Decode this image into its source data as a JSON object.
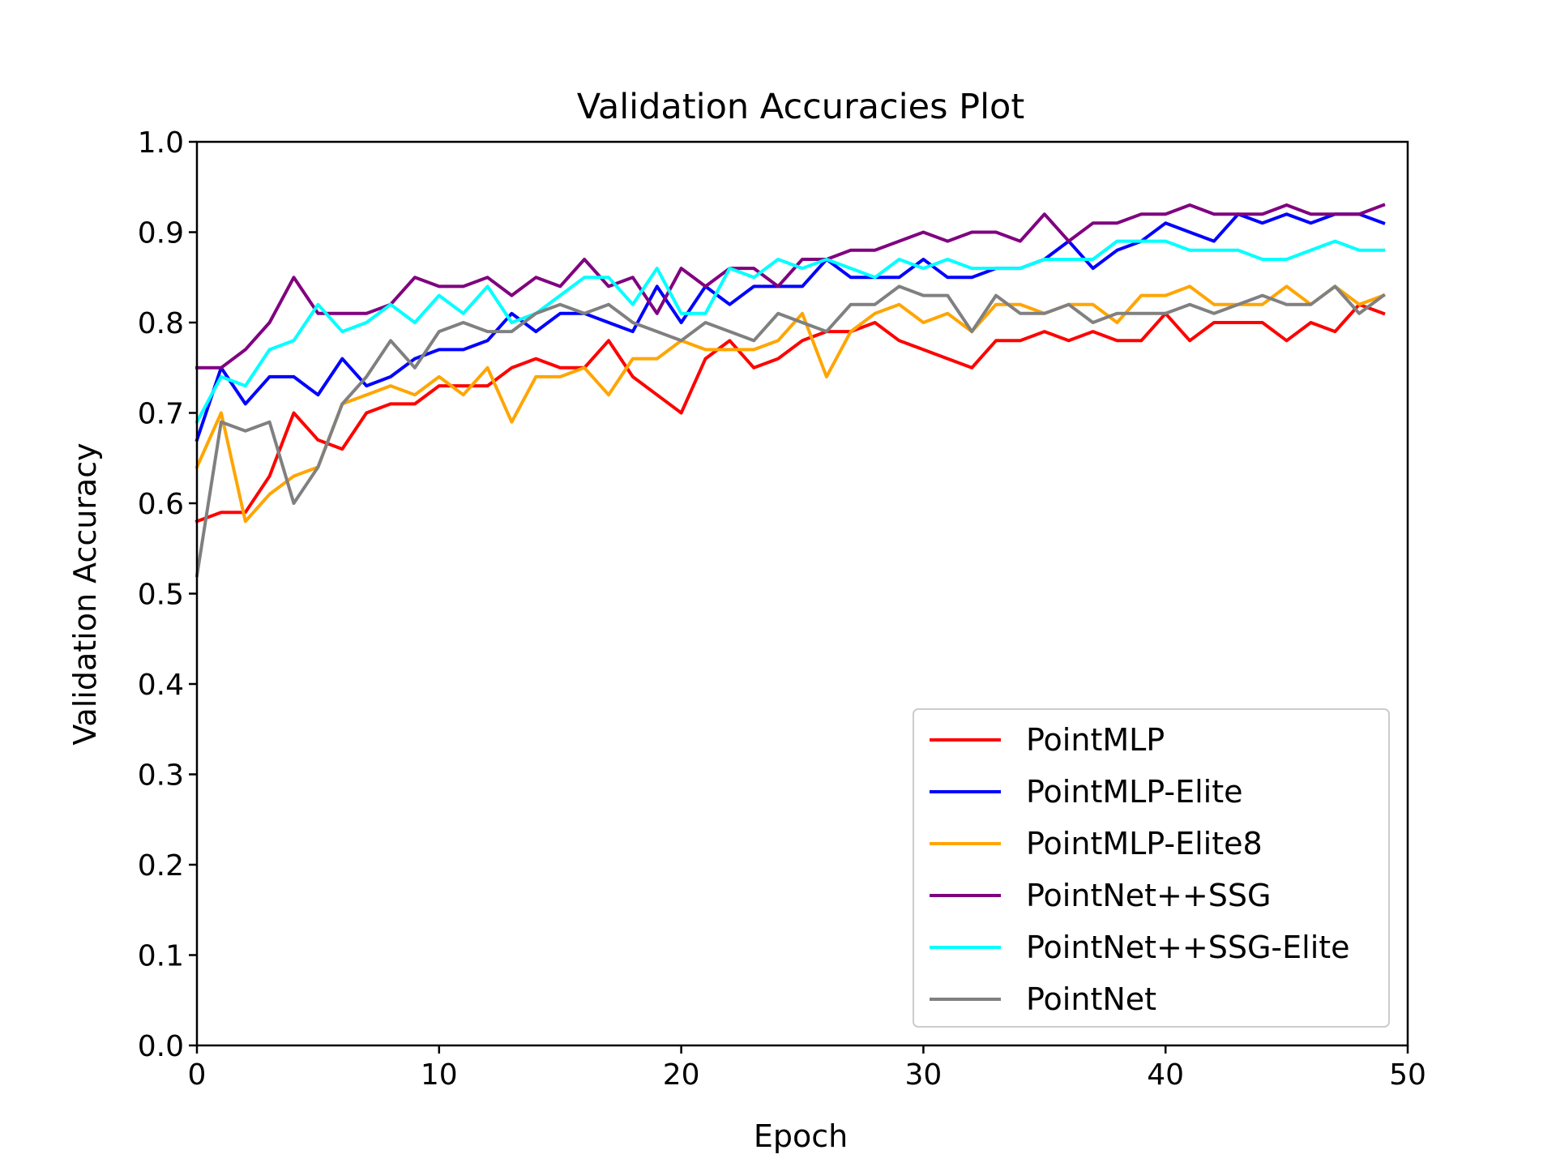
{
  "chart_data": {
    "type": "line",
    "title": "Validation Accuracies Plot",
    "xlabel": "Epoch",
    "ylabel": "Validation Accuracy",
    "xlim": [
      0,
      50
    ],
    "ylim": [
      0.0,
      1.0
    ],
    "xticks": [
      "0",
      "10",
      "20",
      "30",
      "40",
      "50"
    ],
    "yticks": [
      "0.0",
      "0.1",
      "0.2",
      "0.3",
      "0.4",
      "0.5",
      "0.6",
      "0.7",
      "0.8",
      "0.9",
      "1.0"
    ],
    "grid": false,
    "legend_position": "lower-right",
    "x": [
      0,
      1,
      2,
      3,
      4,
      5,
      6,
      7,
      8,
      9,
      10,
      11,
      12,
      13,
      14,
      15,
      16,
      17,
      18,
      19,
      20,
      21,
      22,
      23,
      24,
      25,
      26,
      27,
      28,
      29,
      30,
      31,
      32,
      33,
      34,
      35,
      36,
      37,
      38,
      39,
      40,
      41,
      42,
      43,
      44,
      45,
      46,
      47,
      48,
      49
    ],
    "series": [
      {
        "name": "PointMLP",
        "color": "#ff0000",
        "values": [
          0.58,
          0.59,
          0.59,
          0.63,
          0.7,
          0.67,
          0.66,
          0.7,
          0.71,
          0.71,
          0.73,
          0.73,
          0.73,
          0.75,
          0.76,
          0.75,
          0.75,
          0.78,
          0.74,
          0.72,
          0.7,
          0.76,
          0.78,
          0.75,
          0.76,
          0.78,
          0.79,
          0.79,
          0.8,
          0.78,
          0.77,
          0.76,
          0.75,
          0.78,
          0.78,
          0.79,
          0.78,
          0.79,
          0.78,
          0.78,
          0.81,
          0.78,
          0.8,
          0.8,
          0.8,
          0.78,
          0.8,
          0.79,
          0.82,
          0.81
        ]
      },
      {
        "name": "PointMLP-Elite",
        "color": "#0000ff",
        "values": [
          0.67,
          0.75,
          0.71,
          0.74,
          0.74,
          0.72,
          0.76,
          0.73,
          0.74,
          0.76,
          0.77,
          0.77,
          0.78,
          0.81,
          0.79,
          0.81,
          0.81,
          0.8,
          0.79,
          0.84,
          0.8,
          0.84,
          0.82,
          0.84,
          0.84,
          0.84,
          0.87,
          0.85,
          0.85,
          0.85,
          0.87,
          0.85,
          0.85,
          0.86,
          0.86,
          0.87,
          0.89,
          0.86,
          0.88,
          0.89,
          0.91,
          0.9,
          0.89,
          0.92,
          0.91,
          0.92,
          0.91,
          0.92,
          0.92,
          0.91
        ]
      },
      {
        "name": "PointMLP-Elite8",
        "color": "#ffa500",
        "values": [
          0.64,
          0.7,
          0.58,
          0.61,
          0.63,
          0.64,
          0.71,
          0.72,
          0.73,
          0.72,
          0.74,
          0.72,
          0.75,
          0.69,
          0.74,
          0.74,
          0.75,
          0.72,
          0.76,
          0.76,
          0.78,
          0.77,
          0.77,
          0.77,
          0.78,
          0.81,
          0.74,
          0.79,
          0.81,
          0.82,
          0.8,
          0.81,
          0.79,
          0.82,
          0.82,
          0.81,
          0.82,
          0.82,
          0.8,
          0.83,
          0.83,
          0.84,
          0.82,
          0.82,
          0.82,
          0.84,
          0.82,
          0.84,
          0.82,
          0.83
        ]
      },
      {
        "name": "PointNet++SSG",
        "color": "#800080",
        "values": [
          0.75,
          0.75,
          0.77,
          0.8,
          0.85,
          0.81,
          0.81,
          0.81,
          0.82,
          0.85,
          0.84,
          0.84,
          0.85,
          0.83,
          0.85,
          0.84,
          0.87,
          0.84,
          0.85,
          0.81,
          0.86,
          0.84,
          0.86,
          0.86,
          0.84,
          0.87,
          0.87,
          0.88,
          0.88,
          0.89,
          0.9,
          0.89,
          0.9,
          0.9,
          0.89,
          0.92,
          0.89,
          0.91,
          0.91,
          0.92,
          0.92,
          0.93,
          0.92,
          0.92,
          0.92,
          0.93,
          0.92,
          0.92,
          0.92,
          0.93
        ]
      },
      {
        "name": "PointNet++SSG-Elite",
        "color": "#00ffff",
        "values": [
          0.69,
          0.74,
          0.73,
          0.77,
          0.78,
          0.82,
          0.79,
          0.8,
          0.82,
          0.8,
          0.83,
          0.81,
          0.84,
          0.8,
          0.81,
          0.83,
          0.85,
          0.85,
          0.82,
          0.86,
          0.81,
          0.81,
          0.86,
          0.85,
          0.87,
          0.86,
          0.87,
          0.86,
          0.85,
          0.87,
          0.86,
          0.87,
          0.86,
          0.86,
          0.86,
          0.87,
          0.87,
          0.87,
          0.89,
          0.89,
          0.89,
          0.88,
          0.88,
          0.88,
          0.87,
          0.87,
          0.88,
          0.89,
          0.88,
          0.88
        ]
      },
      {
        "name": "PointNet",
        "color": "#808080",
        "values": [
          0.52,
          0.69,
          0.68,
          0.69,
          0.6,
          0.64,
          0.71,
          0.74,
          0.78,
          0.75,
          0.79,
          0.8,
          0.79,
          0.79,
          0.81,
          0.82,
          0.81,
          0.82,
          0.8,
          0.79,
          0.78,
          0.8,
          0.79,
          0.78,
          0.81,
          0.8,
          0.79,
          0.82,
          0.82,
          0.84,
          0.83,
          0.83,
          0.79,
          0.83,
          0.81,
          0.81,
          0.82,
          0.8,
          0.81,
          0.81,
          0.81,
          0.82,
          0.81,
          0.82,
          0.83,
          0.82,
          0.82,
          0.84,
          0.81,
          0.83
        ]
      }
    ]
  }
}
